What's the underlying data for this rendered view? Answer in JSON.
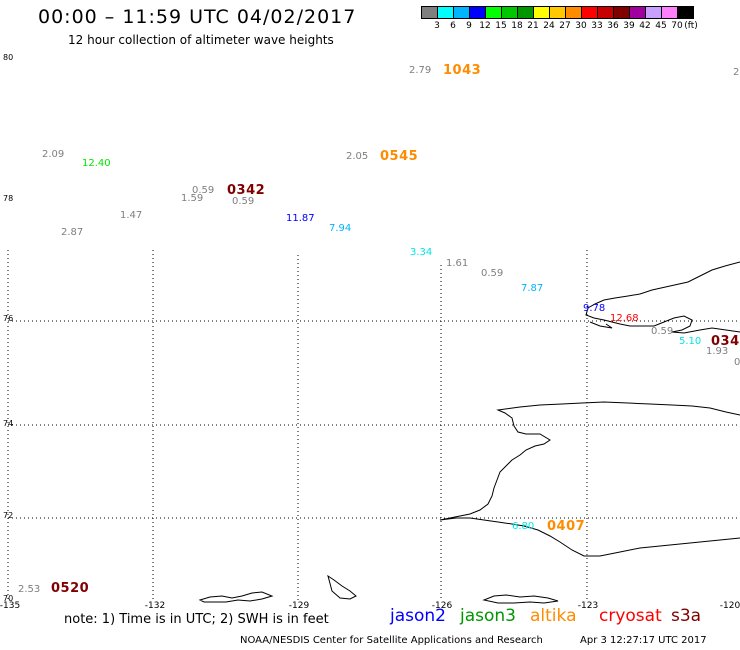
{
  "header": {
    "title": "00:00 – 11:59 UTC 04/02/2017",
    "subtitle": "12 hour collection of altimeter wave heights"
  },
  "color_scale": {
    "unit_label": "(ft)",
    "bins": [
      {
        "label": "3",
        "color": "#7f7f7f"
      },
      {
        "label": "6",
        "color": "#00ffff"
      },
      {
        "label": "9",
        "color": "#00b4ff"
      },
      {
        "label": "12",
        "color": "#0000ff"
      },
      {
        "label": "15",
        "color": "#00ff00"
      },
      {
        "label": "18",
        "color": "#00c800"
      },
      {
        "label": "21",
        "color": "#009600"
      },
      {
        "label": "24",
        "color": "#ffff00"
      },
      {
        "label": "27",
        "color": "#ffc800"
      },
      {
        "label": "30",
        "color": "#ff8c00"
      },
      {
        "label": "33",
        "color": "#ff0000"
      },
      {
        "label": "36",
        "color": "#c80000"
      },
      {
        "label": "39",
        "color": "#800000"
      },
      {
        "label": "42",
        "color": "#a000a0"
      },
      {
        "label": "45",
        "color": "#c8a0ff"
      },
      {
        "label": "70",
        "color": "#ff80ff"
      },
      {
        "label": "",
        "color": "#000000"
      }
    ]
  },
  "axes": {
    "y_labels": [
      "80",
      "78",
      "76",
      "74",
      "72",
      "70"
    ],
    "x_labels": [
      "-135",
      "-132",
      "-129",
      "-126",
      "-123",
      "-120"
    ]
  },
  "observations": [
    {
      "text": "2.79",
      "color": "#7f7f7f"
    },
    {
      "text": "1043",
      "color": "#ff8c00",
      "time": true
    },
    {
      "text": "2",
      "color": "#7f7f7f"
    },
    {
      "text": "2.09",
      "color": "#7f7f7f"
    },
    {
      "text": "12.40",
      "color": "#00e600"
    },
    {
      "text": "2.05",
      "color": "#7f7f7f"
    },
    {
      "text": "0545",
      "color": "#ff8c00",
      "time": true
    },
    {
      "text": "0.59",
      "color": "#7f7f7f"
    },
    {
      "text": "0342",
      "color": "#800000",
      "time": true
    },
    {
      "text": "1.59",
      "color": "#7f7f7f"
    },
    {
      "text": "0.59",
      "color": "#7f7f7f"
    },
    {
      "text": "1.47",
      "color": "#7f7f7f"
    },
    {
      "text": "11.87",
      "color": "#0000ff"
    },
    {
      "text": "7.94",
      "color": "#00b4ff"
    },
    {
      "text": "2.87",
      "color": "#7f7f7f"
    },
    {
      "text": "3.34",
      "color": "#00e6e6"
    },
    {
      "text": "1.61",
      "color": "#7f7f7f"
    },
    {
      "text": "0.59",
      "color": "#7f7f7f"
    },
    {
      "text": "7.87",
      "color": "#00b4ff"
    },
    {
      "text": "9.78",
      "color": "#0000ff"
    },
    {
      "text": "12.68",
      "color": "#ff0000"
    },
    {
      "text": "0.59",
      "color": "#7f7f7f"
    },
    {
      "text": "5.10",
      "color": "#00e6e6"
    },
    {
      "text": "034",
      "color": "#800000",
      "time": true
    },
    {
      "text": "1.93",
      "color": "#7f7f7f"
    },
    {
      "text": "0",
      "color": "#7f7f7f"
    },
    {
      "text": "6.80",
      "color": "#00e6e6"
    },
    {
      "text": "0407",
      "color": "#ff8c00",
      "time": true
    },
    {
      "text": "2.53",
      "color": "#7f7f7f"
    },
    {
      "text": "0520",
      "color": "#800000",
      "time": true
    }
  ],
  "legend": {
    "note": "note: 1) Time is in UTC; 2) SWH is in feet",
    "satellites": [
      {
        "name": "jason2",
        "color": "#0000ff"
      },
      {
        "name": "jason3",
        "color": "#009600"
      },
      {
        "name": "altika",
        "color": "#ff8c00"
      },
      {
        "name": "cryosat",
        "color": "#ff0000"
      },
      {
        "name": "s3a",
        "color": "#800000"
      }
    ]
  },
  "footer": {
    "credit": "NOAA/NESDIS Center for Satellite Applications and Research",
    "generated": "Apr  3 12:27:17 UTC 2017"
  }
}
